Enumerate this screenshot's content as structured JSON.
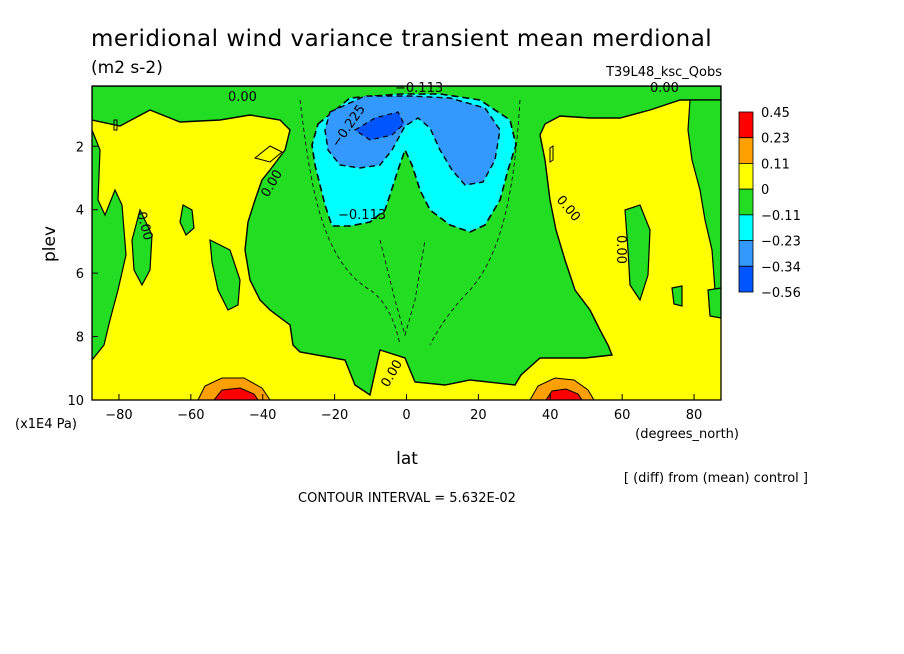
{
  "chart_data": {
    "type": "heatmap",
    "title": "meridional wind variance transient mean merdional",
    "units": "(m2 s-2)",
    "experiment": "T39L48_ksc_Qobs",
    "xlabel": "lat",
    "xunits": "(degrees_north)",
    "ylabel": "plev",
    "yunits": "(x1E4 Pa)",
    "x_ticks": [
      "-80",
      "-60",
      "-40",
      "-20",
      "0",
      "20",
      "40",
      "60",
      "80"
    ],
    "x_tick_values": [
      -80,
      -60,
      -40,
      -20,
      0,
      20,
      40,
      60,
      80
    ],
    "y_ticks": [
      "2",
      "4",
      "6",
      "8",
      "10"
    ],
    "y_tick_values": [
      2,
      4,
      6,
      8,
      10
    ],
    "xlim": [
      -87.5,
      87.5
    ],
    "ylim": [
      10,
      0.1
    ],
    "colorbar": {
      "labels": [
        "0.45",
        "0.23",
        "0.11",
        "0",
        "−0.11",
        "−0.23",
        "−0.34",
        "−0.56"
      ],
      "colors": [
        "#ff0000",
        "#ffa000",
        "#ffff00",
        "#22dd22",
        "#00ffff",
        "#3399ff",
        "#0055ff"
      ]
    },
    "contour_labels": [
      "0.00",
      "−0.113",
      "−0.225",
      "−0.113",
      "0.00",
      "0.00",
      "0.00",
      "0.00",
      "0.00",
      "0.00"
    ],
    "diff_note": "[ (diff) from (mean) control ]",
    "contour_interval": "CONTOUR INTERVAL = 5.632E-02",
    "regions": [
      {
        "level": "0 to 0.11",
        "color": "#ffff00",
        "description": "background yellow"
      },
      {
        "level": "-0.11 to 0",
        "color": "#22dd22",
        "description": "central green tongue"
      },
      {
        "level": "-0.23 to -0.11",
        "color": "#00ffff",
        "description": "cyan upper tropics"
      },
      {
        "level": "-0.34 to -0.23",
        "color": "#3399ff",
        "description": "blue upper tropics"
      },
      {
        "level": "-0.56 to -0.34",
        "color": "#0055ff",
        "description": "darkest blue core"
      },
      {
        "level": "0.11 to 0.23",
        "color": "#ffa000",
        "description": "orange surface jets near +/-45"
      },
      {
        "level": "0.23 to 0.45",
        "color": "#ff0000",
        "description": "red surface cores near +/-45"
      }
    ]
  }
}
